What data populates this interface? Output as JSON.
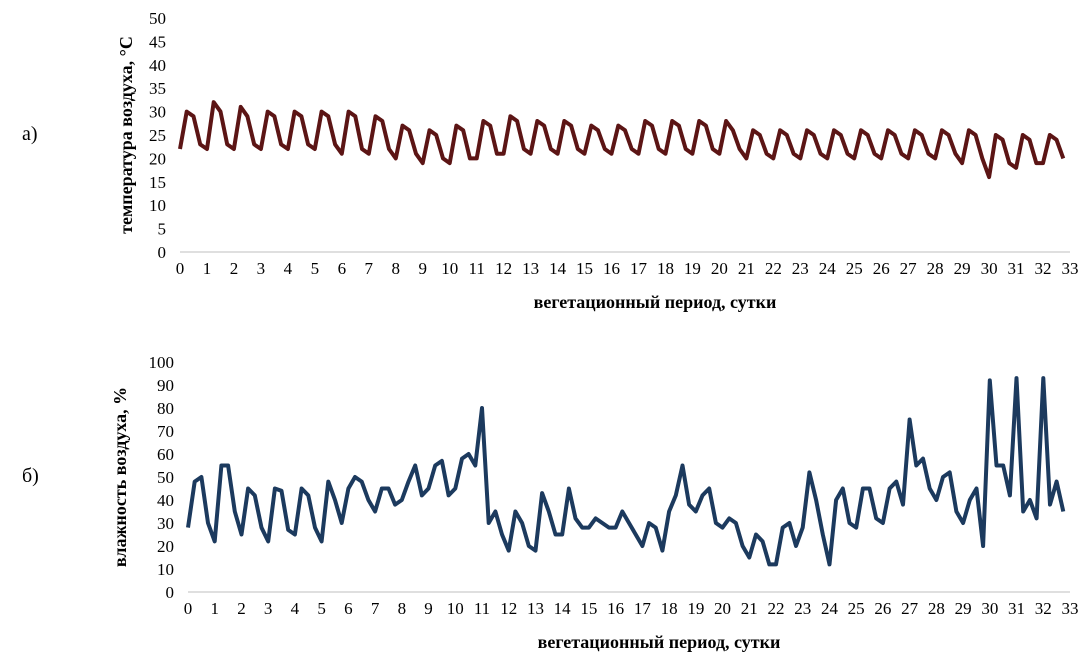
{
  "chart_data": [
    {
      "type": "line",
      "panel_label": "а)",
      "y_label": "температура воздуха, °C",
      "x_label": "вегетационный период, сутки",
      "color": "#5c1515",
      "xlim": [
        0,
        33
      ],
      "xticks": [
        0,
        1,
        2,
        3,
        4,
        5,
        6,
        7,
        8,
        9,
        10,
        11,
        12,
        13,
        14,
        15,
        16,
        17,
        18,
        19,
        20,
        21,
        22,
        23,
        24,
        25,
        26,
        27,
        28,
        29,
        30,
        31,
        32,
        33
      ],
      "ylim": [
        0,
        50
      ],
      "yticks": [
        0,
        5,
        10,
        15,
        20,
        25,
        30,
        35,
        40,
        45,
        50
      ],
      "x": [
        0,
        0.25,
        0.5,
        0.75,
        1,
        1.25,
        1.5,
        1.75,
        2,
        2.25,
        2.5,
        2.75,
        3,
        3.25,
        3.5,
        3.75,
        4,
        4.25,
        4.5,
        4.75,
        5,
        5.25,
        5.5,
        5.75,
        6,
        6.25,
        6.5,
        6.75,
        7,
        7.25,
        7.5,
        7.75,
        8,
        8.25,
        8.5,
        8.75,
        9,
        9.25,
        9.5,
        9.75,
        10,
        10.25,
        10.5,
        10.75,
        11,
        11.25,
        11.5,
        11.75,
        12,
        12.25,
        12.5,
        12.75,
        13,
        13.25,
        13.5,
        13.75,
        14,
        14.25,
        14.5,
        14.75,
        15,
        15.25,
        15.5,
        15.75,
        16,
        16.25,
        16.5,
        16.75,
        17,
        17.25,
        17.5,
        17.75,
        18,
        18.25,
        18.5,
        18.75,
        19,
        19.25,
        19.5,
        19.75,
        20,
        20.25,
        20.5,
        20.75,
        21,
        21.25,
        21.5,
        21.75,
        22,
        22.25,
        22.5,
        22.75,
        23,
        23.25,
        23.5,
        23.75,
        24,
        24.25,
        24.5,
        24.75,
        25,
        25.25,
        25.5,
        25.75,
        26,
        26.25,
        26.5,
        26.75,
        27,
        27.25,
        27.5,
        27.75,
        28,
        28.25,
        28.5,
        28.75,
        29,
        29.25,
        29.5,
        29.75,
        30,
        30.25,
        30.5,
        30.75,
        31,
        31.25,
        31.5,
        31.75,
        32,
        32.25,
        32.5,
        32.75
      ],
      "values": [
        22,
        30,
        29,
        23,
        22,
        32,
        30,
        23,
        22,
        31,
        29,
        23,
        22,
        30,
        29,
        23,
        22,
        30,
        29,
        23,
        22,
        30,
        29,
        23,
        21,
        30,
        29,
        22,
        21,
        29,
        28,
        22,
        20,
        27,
        26,
        21,
        19,
        26,
        25,
        20,
        19,
        27,
        26,
        20,
        20,
        28,
        27,
        21,
        21,
        29,
        28,
        22,
        21,
        28,
        27,
        22,
        21,
        28,
        27,
        22,
        21,
        27,
        26,
        22,
        21,
        27,
        26,
        22,
        21,
        28,
        27,
        22,
        21,
        28,
        27,
        22,
        21,
        28,
        27,
        22,
        21,
        28,
        26,
        22,
        20,
        26,
        25,
        21,
        20,
        26,
        25,
        21,
        20,
        26,
        25,
        21,
        20,
        26,
        25,
        21,
        20,
        26,
        25,
        21,
        20,
        26,
        25,
        21,
        20,
        26,
        25,
        21,
        20,
        26,
        25,
        21,
        19,
        26,
        25,
        20,
        16,
        25,
        24,
        19,
        18,
        25,
        24,
        19,
        19,
        25,
        24,
        20
      ]
    },
    {
      "type": "line",
      "panel_label": "б)",
      "y_label": "влажность воздуха, %",
      "x_label": "вегетационный период, сутки",
      "color": "#1c3a5e",
      "xlim": [
        0,
        33
      ],
      "xticks": [
        0,
        1,
        2,
        3,
        4,
        5,
        6,
        7,
        8,
        9,
        10,
        11,
        12,
        13,
        14,
        15,
        16,
        17,
        18,
        19,
        20,
        21,
        22,
        23,
        24,
        25,
        26,
        27,
        28,
        29,
        30,
        31,
        32,
        33
      ],
      "ylim": [
        0,
        100
      ],
      "yticks": [
        0,
        10,
        20,
        30,
        40,
        50,
        60,
        70,
        80,
        90,
        100
      ],
      "x": [
        0,
        0.25,
        0.5,
        0.75,
        1,
        1.25,
        1.5,
        1.75,
        2,
        2.25,
        2.5,
        2.75,
        3,
        3.25,
        3.5,
        3.75,
        4,
        4.25,
        4.5,
        4.75,
        5,
        5.25,
        5.5,
        5.75,
        6,
        6.25,
        6.5,
        6.75,
        7,
        7.25,
        7.5,
        7.75,
        8,
        8.25,
        8.5,
        8.75,
        9,
        9.25,
        9.5,
        9.75,
        10,
        10.25,
        10.5,
        10.75,
        11,
        11.25,
        11.5,
        11.75,
        12,
        12.25,
        12.5,
        12.75,
        13,
        13.25,
        13.5,
        13.75,
        14,
        14.25,
        14.5,
        14.75,
        15,
        15.25,
        15.5,
        15.75,
        16,
        16.25,
        16.5,
        16.75,
        17,
        17.25,
        17.5,
        17.75,
        18,
        18.25,
        18.5,
        18.75,
        19,
        19.25,
        19.5,
        19.75,
        20,
        20.25,
        20.5,
        20.75,
        21,
        21.25,
        21.5,
        21.75,
        22,
        22.25,
        22.5,
        22.75,
        23,
        23.25,
        23.5,
        23.75,
        24,
        24.25,
        24.5,
        24.75,
        25,
        25.25,
        25.5,
        25.75,
        26,
        26.25,
        26.5,
        26.75,
        27,
        27.25,
        27.5,
        27.75,
        28,
        28.25,
        28.5,
        28.75,
        29,
        29.25,
        29.5,
        29.75,
        30,
        30.25,
        30.5,
        30.75,
        31,
        31.25,
        31.5,
        31.75,
        32,
        32.25,
        32.5,
        32.75
      ],
      "values": [
        28,
        48,
        50,
        30,
        22,
        55,
        55,
        35,
        25,
        45,
        42,
        28,
        22,
        45,
        44,
        27,
        25,
        45,
        42,
        28,
        22,
        48,
        40,
        30,
        45,
        50,
        48,
        40,
        35,
        45,
        45,
        38,
        40,
        48,
        55,
        42,
        45,
        55,
        57,
        42,
        45,
        58,
        60,
        55,
        80,
        30,
        35,
        25,
        18,
        35,
        30,
        20,
        18,
        43,
        35,
        25,
        25,
        45,
        32,
        28,
        28,
        32,
        30,
        28,
        28,
        35,
        30,
        25,
        20,
        30,
        28,
        18,
        35,
        42,
        55,
        38,
        35,
        42,
        45,
        30,
        28,
        32,
        30,
        20,
        15,
        25,
        22,
        12,
        12,
        28,
        30,
        20,
        28,
        52,
        40,
        25,
        12,
        40,
        45,
        30,
        28,
        45,
        45,
        32,
        30,
        45,
        48,
        38,
        75,
        55,
        58,
        45,
        40,
        50,
        52,
        35,
        30,
        40,
        45,
        20,
        92,
        55,
        55,
        42,
        93,
        35,
        40,
        32,
        93,
        38,
        48,
        35
      ]
    }
  ]
}
